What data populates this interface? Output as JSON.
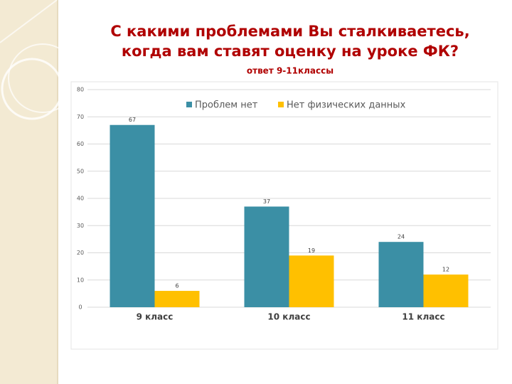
{
  "chart_data": {
    "type": "bar",
    "title_lines": [
      "С какими проблемами Вы сталкиваетесь,",
      "когда вам ставят оценку на уроке ФК?"
    ],
    "subtitle": "ответ  9-11классы",
    "categories": [
      "9 класс",
      "10 класс",
      "11 класс"
    ],
    "series": [
      {
        "name": "Проблем нет",
        "color": "#3b8fa5",
        "values": [
          67,
          37,
          24
        ]
      },
      {
        "name": "Нет физических данных",
        "color": "#ffc000",
        "values": [
          6,
          19,
          12
        ]
      }
    ],
    "ylim": [
      0,
      80
    ],
    "yticks": [
      0,
      10,
      20,
      30,
      40,
      50,
      60,
      70,
      80
    ],
    "grid": true,
    "legend": "top"
  }
}
